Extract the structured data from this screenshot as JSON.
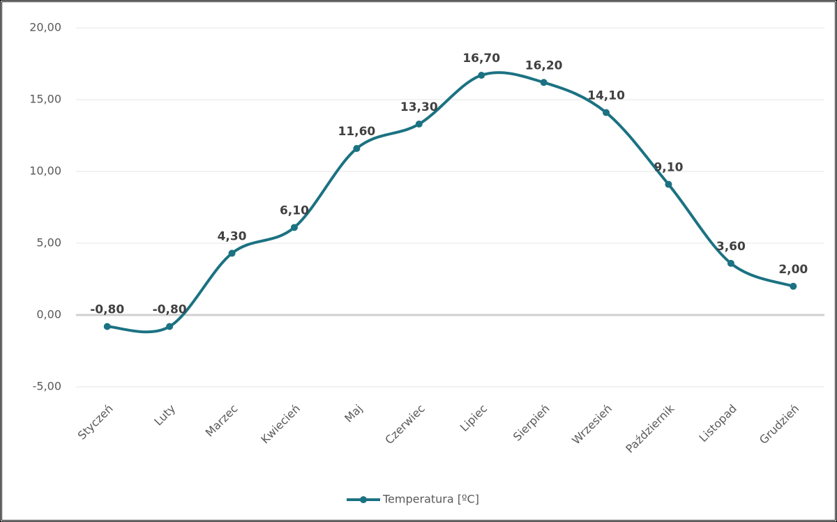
{
  "chart_data": {
    "type": "line",
    "categories": [
      "Styczeń",
      "Luty",
      "Marzec",
      "Kwiecień",
      "Maj",
      "Czerwiec",
      "Lipiec",
      "Sierpień",
      "Wrzesień",
      "Październik",
      "Listopad",
      "Grudzień"
    ],
    "series": [
      {
        "name": "Temperatura [ºC]",
        "color": "#1b7282",
        "values": [
          -0.8,
          -0.8,
          4.3,
          6.1,
          11.6,
          13.3,
          16.7,
          16.2,
          14.1,
          9.1,
          3.6,
          2.0
        ],
        "value_labels": [
          "-0,80",
          "-0,80",
          "4,30",
          "6,10",
          "11,60",
          "13,30",
          "16,70",
          "16,20",
          "14,10",
          "9,10",
          "3,60",
          "2,00"
        ]
      }
    ],
    "ylim": [
      -5,
      20
    ],
    "yticks": [
      {
        "value": -5,
        "label": "-5,00"
      },
      {
        "value": 0,
        "label": "0,00"
      },
      {
        "value": 5,
        "label": "5,00"
      },
      {
        "value": 10,
        "label": "10,00"
      },
      {
        "value": 15,
        "label": "15,00"
      },
      {
        "value": 20,
        "label": "20,00"
      }
    ],
    "grid": true,
    "smooth": true,
    "legend": "bottom"
  }
}
